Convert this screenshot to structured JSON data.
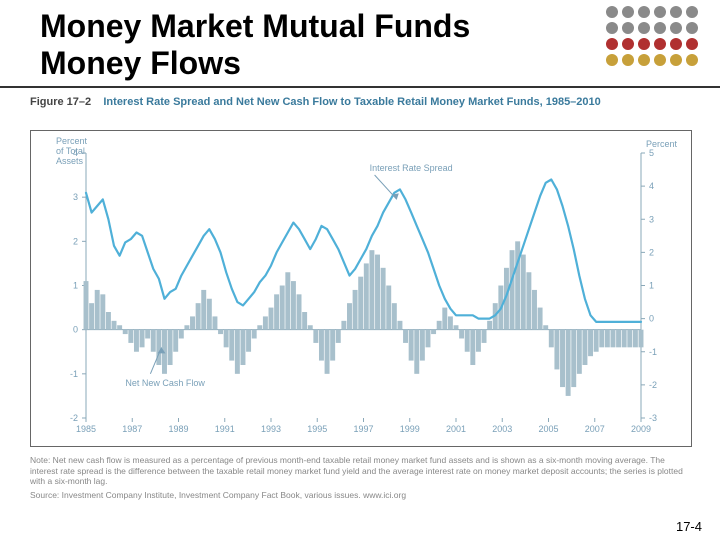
{
  "title": "Money Market Mutual Funds Money Flows",
  "figure": {
    "number": "Figure 17–2",
    "title": "Interest Rate Spread and Net New Cash Flow to Taxable Retail Money Market Funds, 1985–2010"
  },
  "dot_colors": {
    "top_rows": "#8a8a8a",
    "row3": "#b03030",
    "row4": "#c7a03a"
  },
  "chart": {
    "type": "combo-line-bar",
    "background": "#ffffff",
    "border_color": "#666666",
    "line_color": "#4fb0d8",
    "line_width": 2.2,
    "bar_color": "#a8c0cc",
    "zero_line_color": "#8aa8b8",
    "left_axis": {
      "label_top": "Percent",
      "label_sub": "of Total",
      "label_sub2": "Assets",
      "min": -2,
      "max": 4,
      "ticks": [
        -2,
        -1,
        0,
        1,
        2,
        3,
        4
      ]
    },
    "right_axis": {
      "label": "Percent",
      "min": -3,
      "max": 5,
      "ticks": [
        -3,
        -2,
        -1,
        0,
        1,
        2,
        3,
        4,
        5
      ]
    },
    "x_ticks": [
      "1985",
      "1987",
      "1989",
      "1991",
      "1993",
      "1995",
      "1997",
      "1999",
      "2001",
      "2003",
      "2005",
      "2007",
      "2009"
    ],
    "annotations": {
      "spread_label": "Interest Rate Spread",
      "cashflow_label": "Net New Cash Flow"
    },
    "line_series_right": [
      3.8,
      3.2,
      3.4,
      3.6,
      3.0,
      2.2,
      1.9,
      2.3,
      2.4,
      2.6,
      2.5,
      2.0,
      1.5,
      1.2,
      0.6,
      0.8,
      0.9,
      1.3,
      1.6,
      1.9,
      2.2,
      2.5,
      2.7,
      2.4,
      2.0,
      1.4,
      0.9,
      0.5,
      0.4,
      0.6,
      0.8,
      1.1,
      1.3,
      1.6,
      2.0,
      2.3,
      2.6,
      2.9,
      2.7,
      2.4,
      2.1,
      2.4,
      2.8,
      2.7,
      2.4,
      2.1,
      1.7,
      1.3,
      1.5,
      1.8,
      2.1,
      2.5,
      2.8,
      3.2,
      3.5,
      3.8,
      3.9,
      3.6,
      3.2,
      2.8,
      2.4,
      2.0,
      1.5,
      1.0,
      0.6,
      0.3,
      0.1,
      0.1,
      0.1,
      0.1,
      0.0,
      0.0,
      0.0,
      0.1,
      0.3,
      0.7,
      1.2,
      1.7,
      2.2,
      2.7,
      3.2,
      3.7,
      4.1,
      4.2,
      3.9,
      3.4,
      2.8,
      2.1,
      1.3,
      0.6,
      0.1,
      -0.1,
      -0.1,
      -0.1,
      -0.1,
      -0.1,
      -0.1,
      -0.1,
      -0.1,
      -0.1
    ],
    "bar_series_left": [
      1.1,
      0.6,
      0.9,
      0.8,
      0.4,
      0.2,
      0.1,
      -0.1,
      -0.3,
      -0.5,
      -0.4,
      -0.2,
      -0.5,
      -0.8,
      -1.0,
      -0.8,
      -0.5,
      -0.2,
      0.1,
      0.3,
      0.6,
      0.9,
      0.7,
      0.3,
      -0.1,
      -0.4,
      -0.7,
      -1.0,
      -0.8,
      -0.5,
      -0.2,
      0.1,
      0.3,
      0.5,
      0.8,
      1.0,
      1.3,
      1.1,
      0.8,
      0.4,
      0.1,
      -0.3,
      -0.7,
      -1.0,
      -0.7,
      -0.3,
      0.2,
      0.6,
      0.9,
      1.2,
      1.5,
      1.8,
      1.7,
      1.4,
      1.0,
      0.6,
      0.2,
      -0.3,
      -0.7,
      -1.0,
      -0.7,
      -0.4,
      -0.1,
      0.2,
      0.5,
      0.3,
      0.1,
      -0.2,
      -0.5,
      -0.8,
      -0.5,
      -0.3,
      0.2,
      0.6,
      1.0,
      1.4,
      1.8,
      2.0,
      1.7,
      1.3,
      0.9,
      0.5,
      0.1,
      -0.4,
      -0.9,
      -1.3,
      -1.5,
      -1.3,
      -1.0,
      -0.8,
      -0.6,
      -0.5,
      -0.4,
      -0.4,
      -0.4,
      -0.4,
      -0.4,
      -0.4,
      -0.4,
      -0.4
    ]
  },
  "note": "Note: Net new cash flow is measured as a percentage of previous month-end taxable retail money market fund assets and is shown as a six-month moving average. The interest rate spread is the difference between the taxable retail money market fund yield and the average interest rate on money market deposit accounts; the series is plotted with a six-month lag.",
  "source": "Source: Investment Company Institute, Investment Company Fact Book, various issues. www.ici.org",
  "page_number": "17-4"
}
